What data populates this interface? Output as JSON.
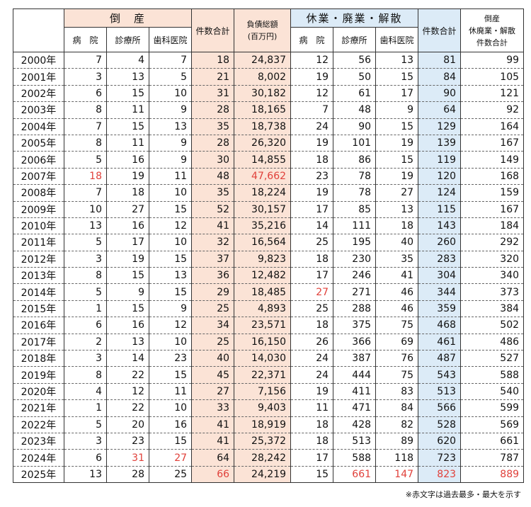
{
  "headers": {
    "bankruptcy": "倒　産",
    "hospital": "病　院",
    "clinic": "診療所",
    "dental": "歯科医院",
    "count_total": "件数合計",
    "debt_total": "負債総額",
    "debt_unit": "(百万円)",
    "closure": "休業・廃業・解散",
    "hospital2": "病　院",
    "clinic2": "診療所",
    "dental2": "歯科医院",
    "count_total2": "件数合計",
    "grand_1": "倒産",
    "grand_2": "休廃業・解散",
    "grand_3": "件数合計"
  },
  "rows": [
    {
      "year": "2000年",
      "b_h": "7",
      "b_c": "4",
      "b_d": "7",
      "b_t": "18",
      "debt": "24,837",
      "c_h": "12",
      "c_c": "56",
      "c_d": "13",
      "c_t": "81",
      "g": "99"
    },
    {
      "year": "2001年",
      "b_h": "3",
      "b_c": "13",
      "b_d": "5",
      "b_t": "21",
      "debt": "8,002",
      "c_h": "19",
      "c_c": "50",
      "c_d": "15",
      "c_t": "84",
      "g": "105"
    },
    {
      "year": "2002年",
      "b_h": "6",
      "b_c": "15",
      "b_d": "10",
      "b_t": "31",
      "debt": "30,182",
      "c_h": "12",
      "c_c": "61",
      "c_d": "17",
      "c_t": "90",
      "g": "121"
    },
    {
      "year": "2003年",
      "b_h": "8",
      "b_c": "11",
      "b_d": "9",
      "b_t": "28",
      "debt": "18,165",
      "c_h": "7",
      "c_c": "48",
      "c_d": "9",
      "c_t": "64",
      "g": "92"
    },
    {
      "year": "2004年",
      "b_h": "7",
      "b_c": "15",
      "b_d": "13",
      "b_t": "35",
      "debt": "18,738",
      "c_h": "24",
      "c_c": "90",
      "c_d": "15",
      "c_t": "129",
      "g": "164"
    },
    {
      "year": "2005年",
      "b_h": "8",
      "b_c": "11",
      "b_d": "9",
      "b_t": "28",
      "debt": "26,320",
      "c_h": "19",
      "c_c": "101",
      "c_d": "19",
      "c_t": "139",
      "g": "167"
    },
    {
      "year": "2006年",
      "b_h": "5",
      "b_c": "16",
      "b_d": "9",
      "b_t": "30",
      "debt": "14,855",
      "c_h": "18",
      "c_c": "86",
      "c_d": "15",
      "c_t": "119",
      "g": "149"
    },
    {
      "year": "2007年",
      "b_h": "18",
      "b_c": "19",
      "b_d": "11",
      "b_t": "48",
      "debt": "47,662",
      "c_h": "23",
      "c_c": "78",
      "c_d": "19",
      "c_t": "120",
      "g": "168"
    },
    {
      "year": "2008年",
      "b_h": "7",
      "b_c": "18",
      "b_d": "10",
      "b_t": "35",
      "debt": "18,224",
      "c_h": "19",
      "c_c": "78",
      "c_d": "27",
      "c_t": "124",
      "g": "159"
    },
    {
      "year": "2009年",
      "b_h": "10",
      "b_c": "27",
      "b_d": "15",
      "b_t": "52",
      "debt": "30,157",
      "c_h": "17",
      "c_c": "85",
      "c_d": "13",
      "c_t": "115",
      "g": "167"
    },
    {
      "year": "2010年",
      "b_h": "13",
      "b_c": "16",
      "b_d": "12",
      "b_t": "41",
      "debt": "35,216",
      "c_h": "14",
      "c_c": "111",
      "c_d": "18",
      "c_t": "143",
      "g": "184"
    },
    {
      "year": "2011年",
      "b_h": "5",
      "b_c": "17",
      "b_d": "10",
      "b_t": "32",
      "debt": "16,564",
      "c_h": "25",
      "c_c": "195",
      "c_d": "40",
      "c_t": "260",
      "g": "292"
    },
    {
      "year": "2012年",
      "b_h": "3",
      "b_c": "19",
      "b_d": "15",
      "b_t": "37",
      "debt": "9,823",
      "c_h": "18",
      "c_c": "230",
      "c_d": "35",
      "c_t": "283",
      "g": "320"
    },
    {
      "year": "2013年",
      "b_h": "8",
      "b_c": "15",
      "b_d": "13",
      "b_t": "36",
      "debt": "12,482",
      "c_h": "17",
      "c_c": "246",
      "c_d": "41",
      "c_t": "304",
      "g": "340"
    },
    {
      "year": "2014年",
      "b_h": "5",
      "b_c": "9",
      "b_d": "15",
      "b_t": "29",
      "debt": "18,485",
      "c_h": "27",
      "c_c": "271",
      "c_d": "46",
      "c_t": "344",
      "g": "373"
    },
    {
      "year": "2015年",
      "b_h": "1",
      "b_c": "15",
      "b_d": "9",
      "b_t": "25",
      "debt": "4,893",
      "c_h": "25",
      "c_c": "288",
      "c_d": "46",
      "c_t": "359",
      "g": "384"
    },
    {
      "year": "2016年",
      "b_h": "6",
      "b_c": "16",
      "b_d": "12",
      "b_t": "34",
      "debt": "23,571",
      "c_h": "18",
      "c_c": "375",
      "c_d": "75",
      "c_t": "468",
      "g": "502"
    },
    {
      "year": "2017年",
      "b_h": "2",
      "b_c": "13",
      "b_d": "10",
      "b_t": "25",
      "debt": "16,150",
      "c_h": "26",
      "c_c": "366",
      "c_d": "69",
      "c_t": "461",
      "g": "486"
    },
    {
      "year": "2018年",
      "b_h": "3",
      "b_c": "14",
      "b_d": "23",
      "b_t": "40",
      "debt": "14,030",
      "c_h": "24",
      "c_c": "387",
      "c_d": "76",
      "c_t": "487",
      "g": "527"
    },
    {
      "year": "2019年",
      "b_h": "8",
      "b_c": "22",
      "b_d": "15",
      "b_t": "45",
      "debt": "22,371",
      "c_h": "24",
      "c_c": "444",
      "c_d": "75",
      "c_t": "543",
      "g": "588"
    },
    {
      "year": "2020年",
      "b_h": "4",
      "b_c": "12",
      "b_d": "11",
      "b_t": "27",
      "debt": "7,156",
      "c_h": "19",
      "c_c": "411",
      "c_d": "83",
      "c_t": "513",
      "g": "540"
    },
    {
      "year": "2021年",
      "b_h": "1",
      "b_c": "22",
      "b_d": "10",
      "b_t": "33",
      "debt": "9,403",
      "c_h": "11",
      "c_c": "471",
      "c_d": "84",
      "c_t": "566",
      "g": "599"
    },
    {
      "year": "2022年",
      "b_h": "5",
      "b_c": "20",
      "b_d": "16",
      "b_t": "41",
      "debt": "18,919",
      "c_h": "18",
      "c_c": "428",
      "c_d": "82",
      "c_t": "528",
      "g": "569"
    },
    {
      "year": "2023年",
      "b_h": "3",
      "b_c": "23",
      "b_d": "15",
      "b_t": "41",
      "debt": "25,372",
      "c_h": "18",
      "c_c": "513",
      "c_d": "89",
      "c_t": "620",
      "g": "661"
    },
    {
      "year": "2024年",
      "b_h": "6",
      "b_c": "31",
      "b_d": "27",
      "b_t": "64",
      "debt": "28,242",
      "c_h": "17",
      "c_c": "588",
      "c_d": "118",
      "c_t": "723",
      "g": "787"
    },
    {
      "year": "2025年",
      "b_h": "13",
      "b_c": "28",
      "b_d": "25",
      "b_t": "66",
      "debt": "24,219",
      "c_h": "15",
      "c_c": "661",
      "c_d": "147",
      "c_t": "823",
      "g": "889"
    }
  ],
  "highlights": {
    "2007年": [
      "b_h",
      "debt"
    ],
    "2014年": [
      "c_h"
    ],
    "2024年": [
      "b_c",
      "b_d"
    ],
    "2025年": [
      "b_t",
      "c_c",
      "c_d",
      "c_t",
      "g"
    ]
  },
  "highlight_color": "#e0403a",
  "footnote": "※赤文字は過去最多・最大を示す"
}
